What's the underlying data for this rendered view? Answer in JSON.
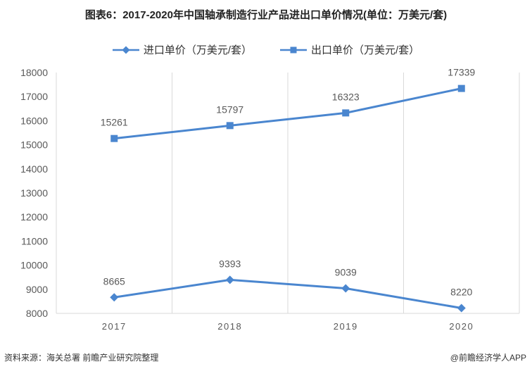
{
  "title": "图表6：2017-2020年中国轴承制造行业产品进出口单价情况(单位：万美元/套)",
  "source": "资料来源：海关总署 前瞻产业研究院整理",
  "credit": "@前瞻经济学人APP",
  "colors": {
    "line": "#4a86cf",
    "grid": "#d9d9d9",
    "axis_text": "#595959"
  },
  "chart_data": {
    "type": "line",
    "categories": [
      "2017",
      "2018",
      "2019",
      "2020"
    ],
    "ylim": [
      8000,
      18000
    ],
    "yticks": [
      8000,
      9000,
      10000,
      11000,
      12000,
      13000,
      14000,
      15000,
      16000,
      17000,
      18000
    ],
    "grid": "vertical",
    "legend": "top",
    "series": [
      {
        "name": "进口单价（万美元/套）",
        "marker": "diamond",
        "values": [
          8665,
          9393,
          9039,
          8220
        ]
      },
      {
        "name": "出口单价（万美元/套）",
        "marker": "square",
        "values": [
          15261,
          15797,
          16323,
          17339
        ]
      }
    ]
  }
}
